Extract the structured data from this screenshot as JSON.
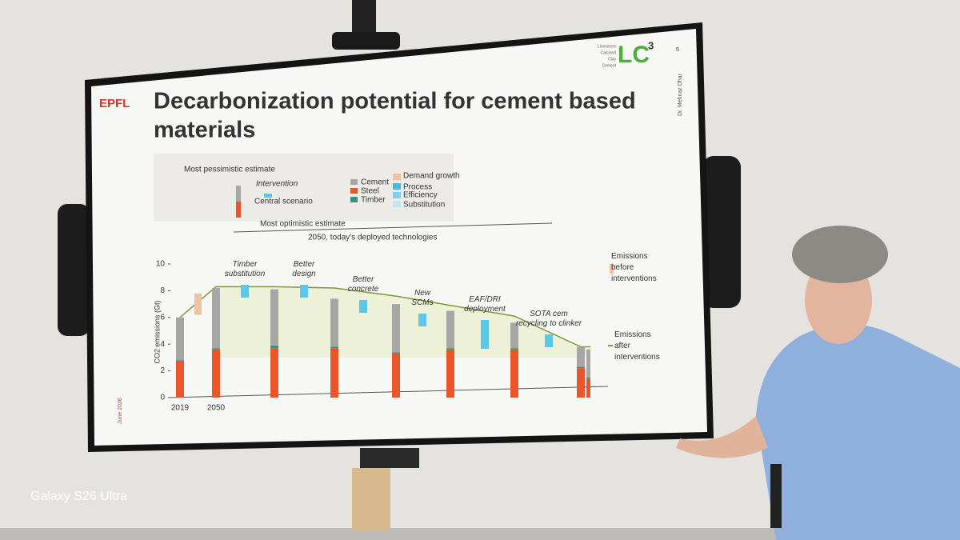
{
  "watermark": "Galaxy S26 Ultra",
  "slide": {
    "logo": "EPFL",
    "brand": {
      "lines": [
        "Limestone",
        "Calcined",
        "Clay",
        "Cement"
      ],
      "mark": "LC",
      "sup": "3"
    },
    "page_number": "5",
    "author": "Dr. Mehnaz Dhar",
    "date": "June 2026",
    "title_lines": [
      "Decarbonization potential for cement based",
      "materials"
    ],
    "key": {
      "estimates": [
        "Most pessimistic estimate",
        "Central scenario",
        "Most optimistic estimate"
      ],
      "intervention": "Intervention",
      "materials": [
        "Cement",
        "Steel",
        "Timber"
      ],
      "interventions": [
        "Demand growth",
        "Process",
        "Efficiency",
        "Substitution"
      ],
      "baseline": "2050, today's deployed technologies"
    },
    "chart": {
      "y_label": "CO2 emissions (Gt)",
      "ylim": [
        0,
        10
      ],
      "yticks": [
        0,
        2,
        4,
        6,
        8,
        10
      ],
      "x_labels": [
        "2019",
        "2050"
      ],
      "stages": [
        "Timber substitution",
        "Better design",
        "Better concrete",
        "New SCMs",
        "EAF/DRI deployment",
        "SOTA cem recycling to clinker"
      ],
      "series": [
        {
          "name": "Cement",
          "color": "#a6a6a6",
          "values": [
            3.2,
            4.5,
            4.2,
            3.6,
            3.6,
            2.8,
            1.9,
            1.5,
            2.1
          ]
        },
        {
          "name": "Steel",
          "color": "#e8562a",
          "values": [
            2.7,
            3.6,
            3.7,
            3.7,
            3.3,
            3.6,
            3.6,
            2.2,
            1.4
          ]
        },
        {
          "name": "Timber",
          "color": "#3f8f7f",
          "values": [
            0.1,
            0.1,
            0.2,
            0.1,
            0.1,
            0.1,
            0.1,
            0.1,
            0.1
          ]
        }
      ],
      "line": {
        "name": "Emissions after interventions",
        "color": "#7a9a3a",
        "values": [
          6.0,
          8.3,
          8.3,
          8.2,
          7.6,
          6.9,
          6.1,
          3.8,
          3.8
        ]
      },
      "legend": [
        "Emissions before interventions",
        "Emissions after interventions"
      ]
    }
  }
}
